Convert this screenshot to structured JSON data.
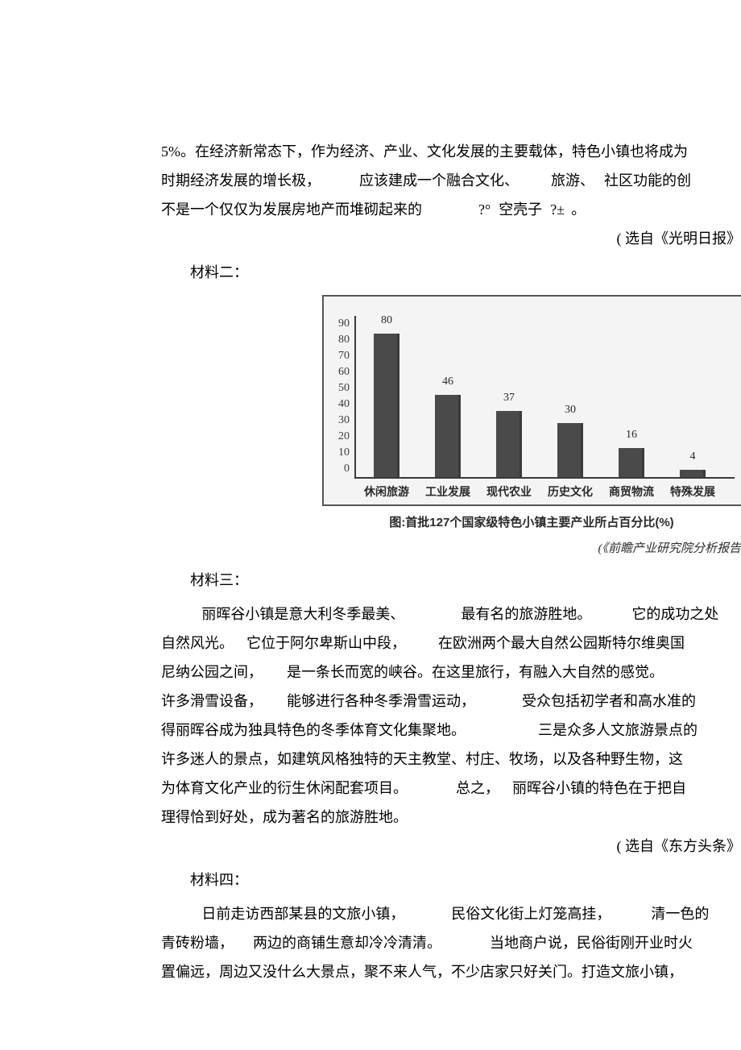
{
  "para1": {
    "line1_a": "5%",
    "line1_b": "。在经济新常态下，作为经济、产业、文化发展的主要载体，特色小镇也将成为",
    "line2_a": "时期经济发展的增长极，",
    "line2_b": "应该建成一个融合文化、",
    "line2_c": "旅游、",
    "line2_d": "社区功能的创",
    "line3_a": "不是一个仅仅为发展房地产而堆砌起来的",
    "line3_b": "?°",
    "line3_c": "空壳子",
    "line3_d": "?±",
    "line3_e": "。"
  },
  "source1": "( 选自《光明日报》",
  "label2": "材料二：",
  "chart": {
    "type": "bar",
    "ymax": 90,
    "ytick_step": 10,
    "yticks": [
      "0",
      "10",
      "20",
      "30",
      "40",
      "50",
      "60",
      "70",
      "80",
      "90"
    ],
    "categories": [
      "休闲旅游",
      "工业发展",
      "现代农业",
      "历史文化",
      "商贸物流",
      "特殊发展"
    ],
    "values": [
      80,
      46,
      37,
      30,
      16,
      4
    ],
    "bar_color": "#4a4a4a",
    "border_color": "#555555",
    "bg_color": "#f4f4f4",
    "caption": "图:首批127个国家级特色小镇主要产业所占百分比(%)",
    "source": "(《前瞻产业研究院分析报告"
  },
  "label3": "材料三：",
  "para3": {
    "l1a": "丽晖谷小镇是意大利冬季最美、",
    "l1b": "最有名的旅游胜地。",
    "l1c": "它的成功之处",
    "l2a": "自然风光。",
    "l2b": "它位于阿尔卑斯山中段，",
    "l2c": "在欧洲两个最大自然公园斯特尔维奥国",
    "l3a": "尼纳公园之间，",
    "l3b": "是一条长而宽的峡谷。在这里旅行，有融入大自然的感觉。",
    "l4a": "许多滑雪设备，",
    "l4b": "能够进行各种冬季滑雪运动，",
    "l4c": "受众包括初学者和高水准的",
    "l5a": "得丽晖谷成为独具特色的冬季体育文化集聚地。",
    "l5b": "三是众多人文旅游景点的",
    "l6": "许多迷人的景点，如建筑风格独特的天主教堂、村庄、牧场，以及各种野生物，这",
    "l7a": "为体育文化产业的衍生休闲配套项目。",
    "l7b": "总之，",
    "l7c": "丽晖谷小镇的特色在于把自",
    "l8": "理得恰到好处，成为著名的旅游胜地。"
  },
  "source3": "( 选自《东方头条》",
  "label4": "材料四：",
  "para4": {
    "l1a": "日前走访西部某县的文旅小镇，",
    "l1b": "民俗文化街上灯笼高挂，",
    "l1c": "清一色的",
    "l2a": "青砖粉墙，",
    "l2b": "两边的商铺生意却冷冷清清。",
    "l2c": "当地商户说，民俗街刚开业时火",
    "l3": "置偏远，周边又没什么大景点，聚不来人气，不少店家只好关门。打造文旅小镇，"
  }
}
